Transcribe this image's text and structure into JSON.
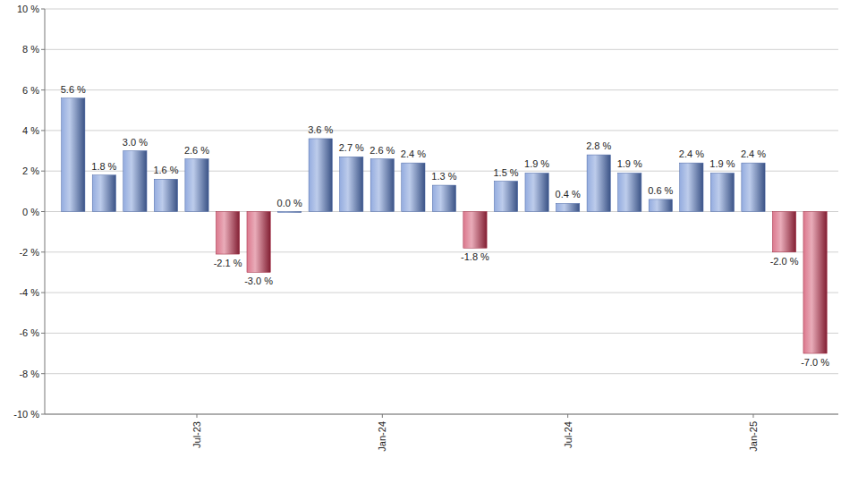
{
  "chart_data": {
    "type": "bar",
    "categories": [
      null,
      null,
      null,
      null,
      "Jul-23",
      null,
      null,
      null,
      null,
      null,
      "Jan-24",
      null,
      null,
      null,
      null,
      null,
      "Jul-24",
      null,
      null,
      null,
      null,
      null,
      "Jan-25",
      null,
      null
    ],
    "values": [
      5.6,
      1.8,
      3.0,
      1.6,
      2.6,
      -2.1,
      -3.0,
      0.0,
      3.6,
      2.7,
      2.6,
      2.4,
      1.3,
      -1.8,
      1.5,
      1.9,
      0.4,
      2.8,
      1.9,
      0.6,
      2.4,
      1.9,
      2.4,
      -2.0,
      -7.0
    ],
    "value_labels": [
      "5.6 %",
      "1.8 %",
      "3.0 %",
      "1.6 %",
      "2.6 %",
      "-2.1 %",
      "-3.0 %",
      "0.0 %",
      "3.6 %",
      "2.7 %",
      "2.6 %",
      "2.4 %",
      "1.3 %",
      "-1.8 %",
      "1.5 %",
      "1.9 %",
      "0.4 %",
      "2.8 %",
      "1.9 %",
      "0.6 %",
      "2.4 %",
      "1.9 %",
      "2.4 %",
      "-2.0 %",
      "-7.0 %"
    ],
    "colors": [
      "#5b7fce",
      "#5b7fce",
      "#5b7fce",
      "#5b7fce",
      "#5b7fce",
      "#c8304f",
      "#c8304f",
      "#5b7fce",
      "#5b7fce",
      "#5b7fce",
      "#5b7fce",
      "#5b7fce",
      "#5b7fce",
      "#c8304f",
      "#5b7fce",
      "#5b7fce",
      "#5b7fce",
      "#5b7fce",
      "#5b7fce",
      "#5b7fce",
      "#5b7fce",
      "#5b7fce",
      "#5b7fce",
      "#c8304f",
      "#c8304f"
    ],
    "ylim": [
      -10,
      10
    ],
    "yticks": [
      {
        "value": -10,
        "label": "-10 %"
      },
      {
        "value": -8,
        "label": "-8 %"
      },
      {
        "value": -6,
        "label": "-6 %"
      },
      {
        "value": -4,
        "label": "-4 %"
      },
      {
        "value": -2,
        "label": "-2 %"
      },
      {
        "value": 0,
        "label": "0 %"
      },
      {
        "value": 2,
        "label": "2 %"
      },
      {
        "value": 4,
        "label": "4 %"
      },
      {
        "value": 6,
        "label": "6 %"
      },
      {
        "value": 8,
        "label": "8 %"
      },
      {
        "value": 10,
        "label": "10 %"
      }
    ],
    "grid": true,
    "data_labels": true
  }
}
